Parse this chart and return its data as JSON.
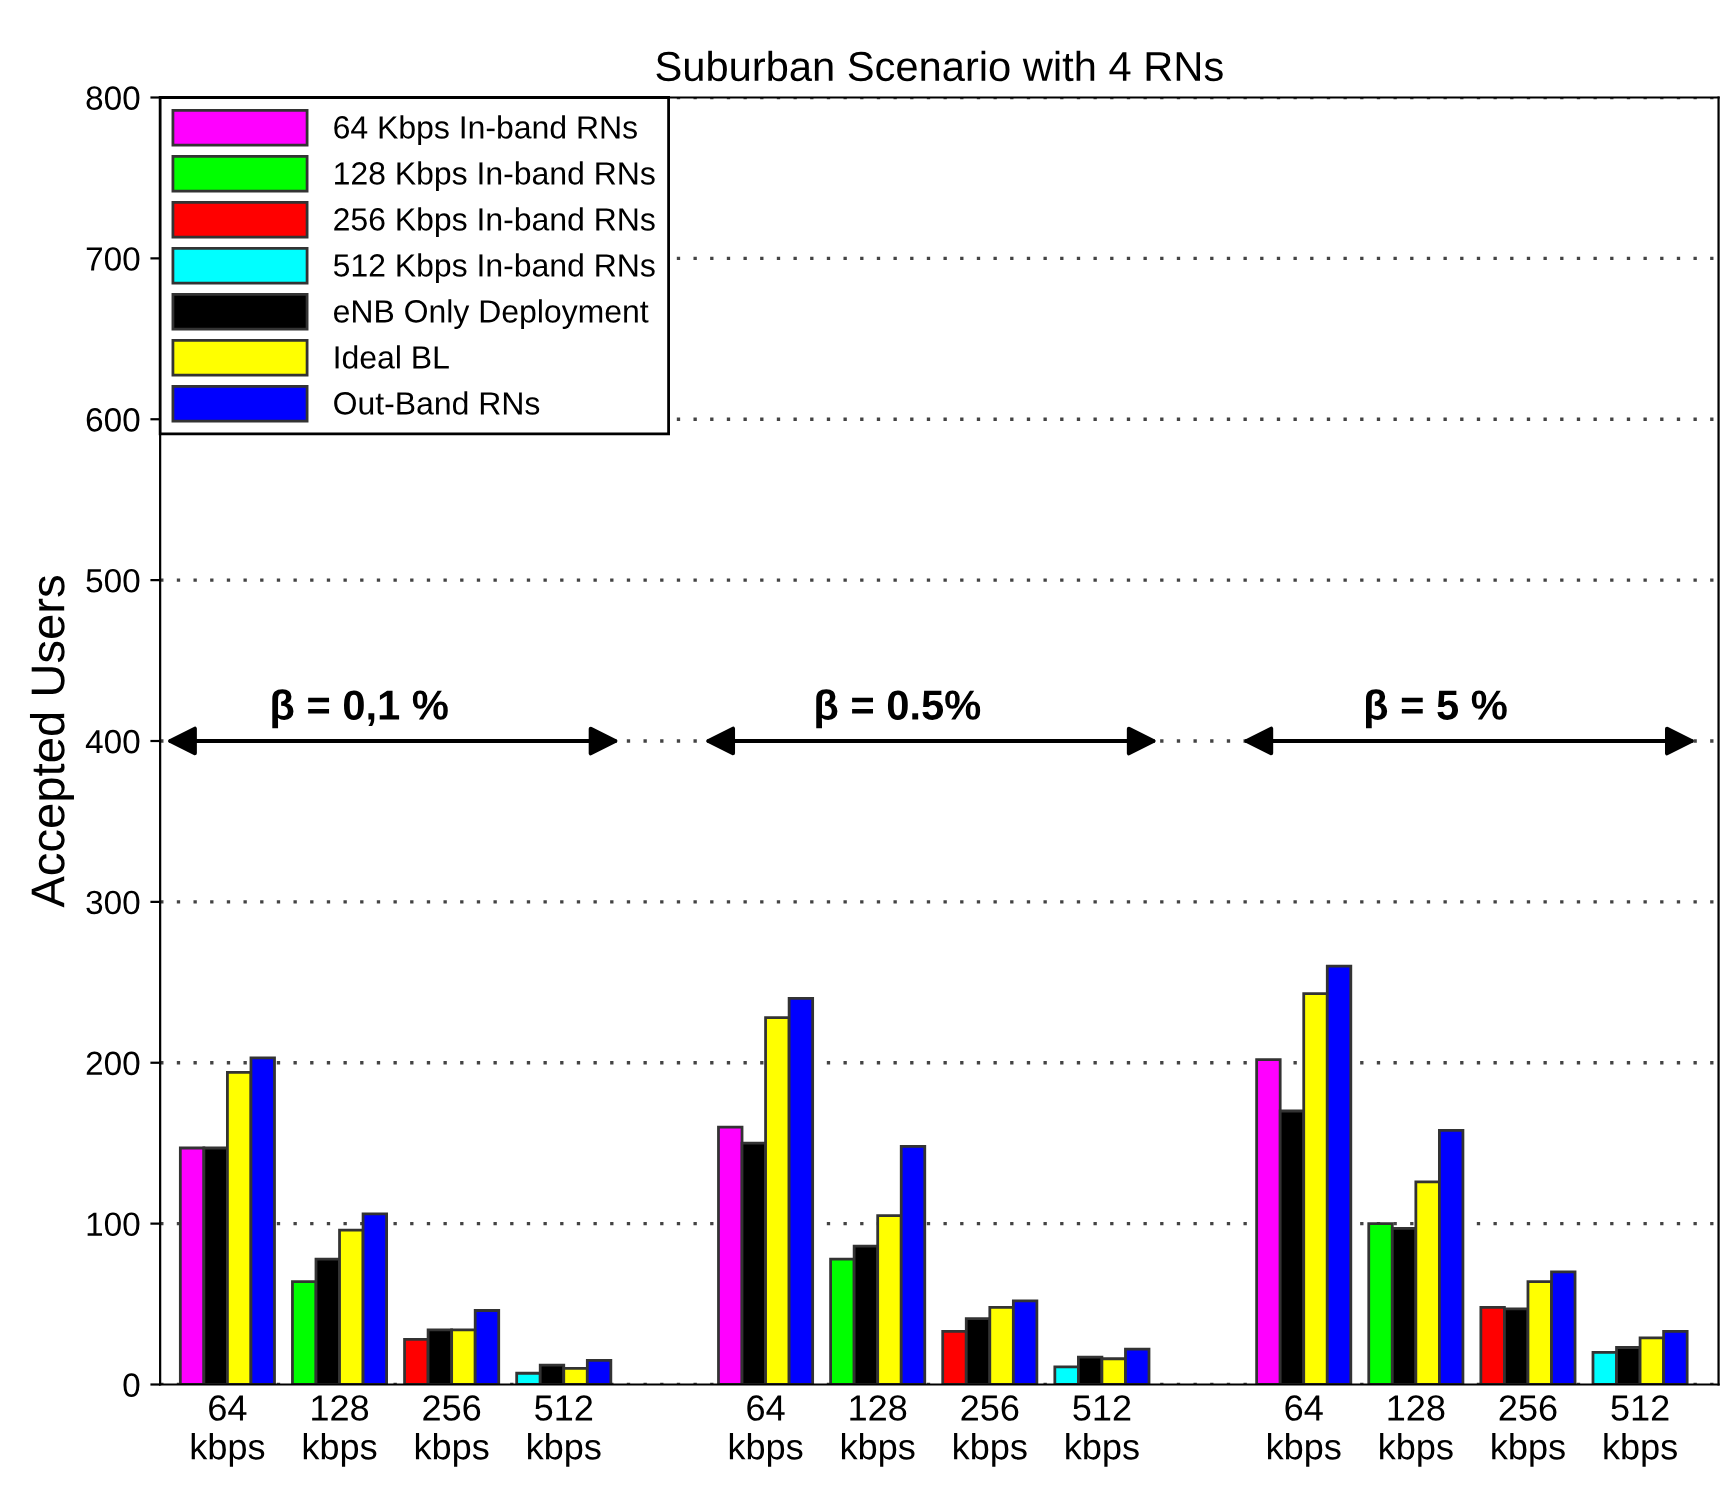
{
  "chart_data": {
    "type": "bar",
    "title": "Suburban Scenario with 4 RNs",
    "ylabel": "Accepted Users",
    "categories": [
      "64\nkbps",
      "128\nkbps",
      "256\nkbps",
      "512\nkbps",
      "64\nkbps",
      "128\nkbps",
      "256\nkbps",
      "512\nkbps",
      "64\nkbps",
      "128\nkbps",
      "256\nkbps",
      "512\nkbps"
    ],
    "series": [
      {
        "name": "64 Kbps In-band RNs",
        "color": "#ff00ff",
        "values": [
          147,
          null,
          null,
          null,
          160,
          null,
          null,
          null,
          202,
          null,
          null,
          null
        ]
      },
      {
        "name": "128 Kbps In-band RNs",
        "color": "#00ff00",
        "values": [
          null,
          64,
          null,
          null,
          null,
          78,
          null,
          null,
          null,
          100,
          null,
          null
        ]
      },
      {
        "name": "256 Kbps In-band RNs",
        "color": "#ff0000",
        "values": [
          null,
          null,
          28,
          null,
          null,
          null,
          33,
          null,
          null,
          null,
          48,
          null
        ]
      },
      {
        "name": "512 Kbps In-band RNs",
        "color": "#00ffff",
        "values": [
          null,
          null,
          null,
          7,
          null,
          null,
          null,
          11,
          null,
          null,
          null,
          20
        ]
      },
      {
        "name": "eNB Only Deployment",
        "color": "#000000",
        "values": [
          147,
          78,
          34,
          12,
          150,
          86,
          41,
          17,
          170,
          97,
          47,
          23
        ]
      },
      {
        "name": "Ideal BL",
        "color": "#ffff00",
        "values": [
          194,
          96,
          34,
          10,
          228,
          105,
          48,
          16,
          243,
          126,
          64,
          29
        ]
      },
      {
        "name": "Out-Band RNs",
        "color": "#0000ff",
        "values": [
          203,
          106,
          46,
          15,
          240,
          148,
          52,
          22,
          260,
          158,
          70,
          33
        ]
      }
    ],
    "ylim": [
      0,
      800
    ],
    "yticks": [
      0,
      100,
      200,
      300,
      400,
      500,
      600,
      700,
      800
    ],
    "grid": "y",
    "legend": "top left",
    "annotations": [
      "β = 0,1 %",
      "β = 0.5%",
      "β = 5 %"
    ]
  }
}
